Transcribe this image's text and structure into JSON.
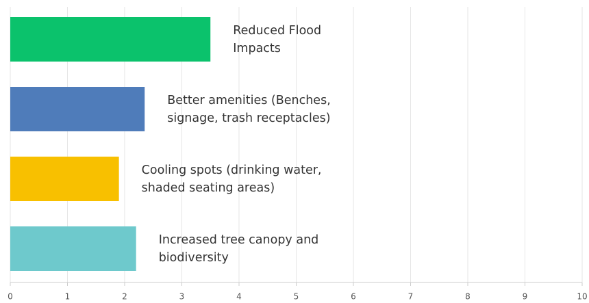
{
  "chart_data": {
    "type": "barh",
    "categories": [
      "Reduced Flood\nImpacts",
      "Better amenities (Benches,\nsignage, trash receptacles)",
      "Cooling spots (drinking water,\nshaded seating areas)",
      "Increased tree canopy and\nbiodiversity"
    ],
    "values": [
      3.5,
      2.35,
      1.9,
      2.2
    ],
    "colors": [
      "#0bc26c",
      "#4f7cba",
      "#f8c000",
      "#6ec9cc"
    ],
    "xlim": [
      0,
      10
    ],
    "xticks": [
      0,
      1,
      2,
      3,
      4,
      5,
      6,
      7,
      8,
      9,
      10
    ],
    "grid": true
  }
}
